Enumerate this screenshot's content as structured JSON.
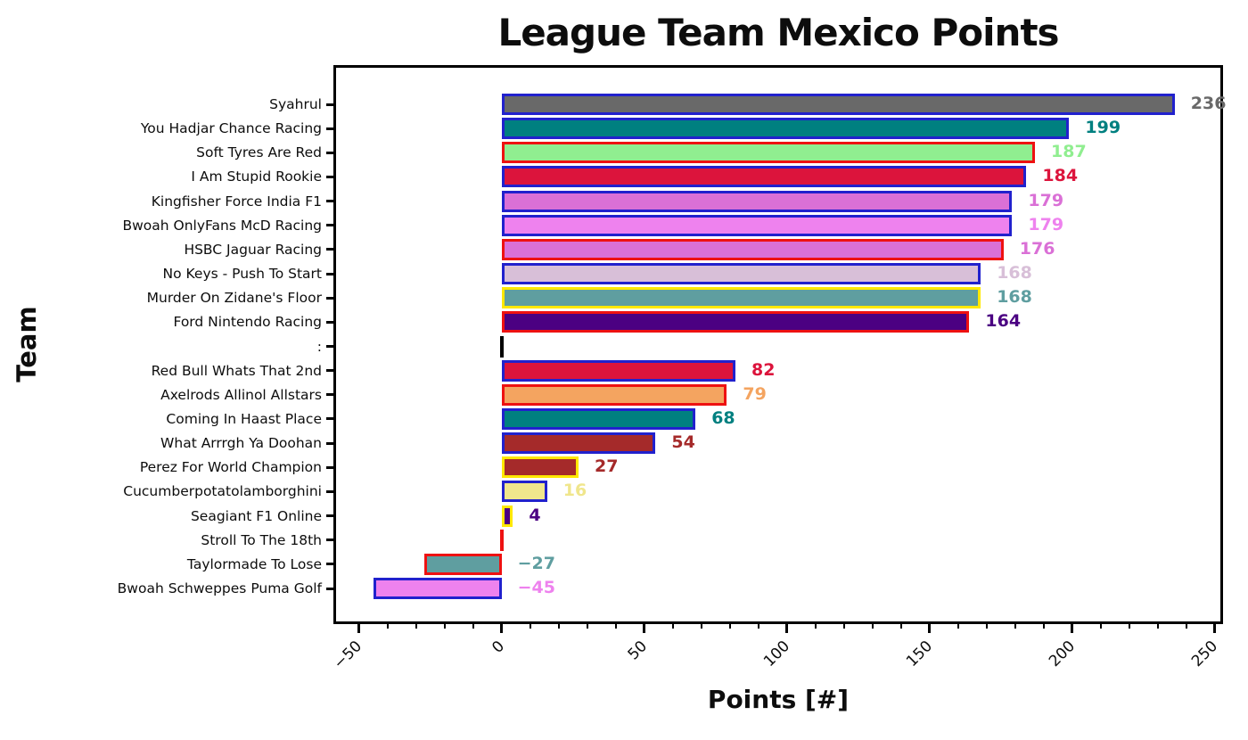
{
  "chart_data": {
    "type": "bar",
    "orientation": "horizontal",
    "title": "League Team Mexico Points",
    "xlabel": "Points [#]",
    "ylabel": "Team",
    "xlim": [
      -58,
      252
    ],
    "xticks": [
      -50,
      0,
      50,
      100,
      150,
      200,
      250
    ],
    "minor_tick_step": 10,
    "grid": false,
    "legend": false,
    "axis_color": "#000000",
    "background": "#ffffff",
    "categories": [
      "Syahrul",
      "You Hadjar Chance Racing",
      "Soft Tyres Are Red",
      "I Am Stupid Rookie",
      "Kingfisher Force India F1",
      "Bwoah OnlyFans McD Racing",
      "HSBC Jaguar Racing",
      "No Keys - Push To Start",
      "Murder On Zidane's Floor",
      "Ford Nintendo Racing",
      ":",
      "Red Bull Whats That 2nd",
      "Axelrods Allinol Allstars",
      "Coming In Haast Place",
      "What Arrrgh Ya Doohan",
      "Perez For World Champion",
      "Cucumberpotatolamborghini",
      "Seagiant F1 Online",
      "Stroll To The 18th",
      "Taylormade To Lose",
      "Bwoah Schweppes Puma Golf"
    ],
    "values": [
      236,
      199,
      187,
      184,
      179,
      179,
      176,
      168,
      168,
      164,
      0,
      82,
      79,
      68,
      54,
      27,
      16,
      4,
      0,
      -27,
      -45
    ],
    "bar_fill_colors": [
      "#696969",
      "#008080",
      "#90ee90",
      "#dc143c",
      "#da70d6",
      "#ee82ee",
      "#da70d6",
      "#d8bfd8",
      "#5f9ea0",
      "#4b0082",
      "#000000",
      "#dc143c",
      "#f4a460",
      "#008080",
      "#a52a2a",
      "#a52a2a",
      "#f0e68c",
      "#4b0082",
      "#ee1111",
      "#5f9ea0",
      "#ee82ee"
    ],
    "bar_edge_colors": [
      "#2121cd",
      "#2121cd",
      "#ee1111",
      "#2121cd",
      "#2121cd",
      "#2121cd",
      "#ee1111",
      "#2121cd",
      "#ffe800",
      "#ee1111",
      "#000000",
      "#2121cd",
      "#ee1111",
      "#2121cd",
      "#2121cd",
      "#ffe800",
      "#2121cd",
      "#ffe800",
      "#ee1111",
      "#ee1111",
      "#2121cd"
    ],
    "value_label_colors": [
      "#696969",
      "#008080",
      "#90ee90",
      "#dc143c",
      "#da70d6",
      "#ee82ee",
      "#da70d6",
      "#d8bfd8",
      "#5f9ea0",
      "#4b0082",
      "#000000",
      "#dc143c",
      "#f4a460",
      "#008080",
      "#a52a2a",
      "#a52a2a",
      "#f0e68c",
      "#4b0082",
      "#ee1111",
      "#5f9ea0",
      "#ee82ee"
    ],
    "value_label_visible": [
      true,
      true,
      true,
      true,
      true,
      true,
      true,
      true,
      true,
      true,
      false,
      true,
      true,
      true,
      true,
      true,
      true,
      true,
      false,
      true,
      true
    ]
  }
}
